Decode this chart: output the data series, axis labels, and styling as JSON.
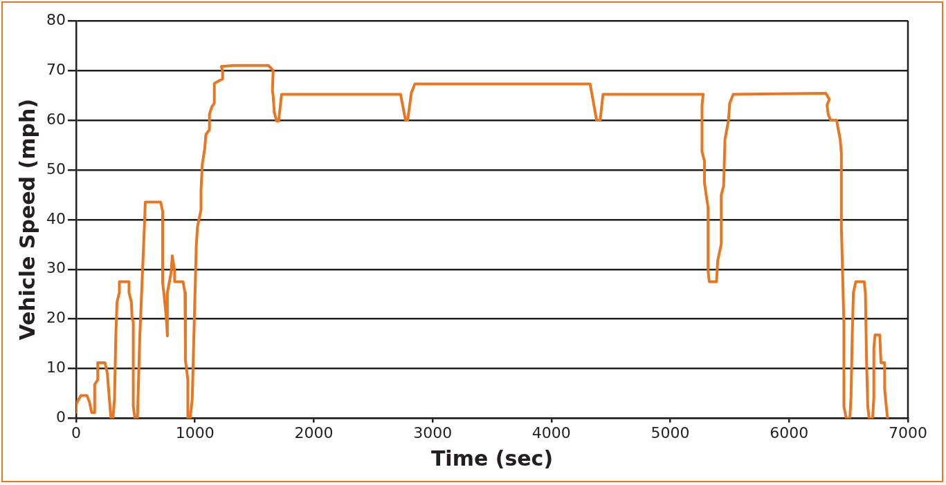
{
  "chart_data": {
    "type": "line",
    "xlabel": "Time (sec)",
    "ylabel": "Vehicle Speed (mph)",
    "xlim": [
      0,
      7000
    ],
    "ylim": [
      0,
      80
    ],
    "xticks": [
      0,
      1000,
      2000,
      3000,
      4000,
      5000,
      6000,
      7000
    ],
    "yticks": [
      0,
      10,
      20,
      30,
      40,
      50,
      60,
      70,
      80
    ],
    "grid": "y",
    "legend": false,
    "marker": "none",
    "line_style": "solid",
    "series": [
      {
        "color": "#e87722",
        "x": [
          0,
          0,
          40,
          91,
          111,
          131,
          152,
          156,
          182,
          182,
          243,
          263,
          273,
          293,
          310,
          323,
          334,
          344,
          364,
          364,
          445,
          445,
          465,
          471,
          481,
          481,
          495,
          516,
          536,
          576,
          582,
          712,
          728,
          728,
          738,
          758,
          768,
          768,
          799,
          809,
          829,
          829,
          900,
          916,
          920,
          940,
          940,
          960,
          977,
          991,
          1011,
          1021,
          1051,
          1051,
          1062,
          1082,
          1092,
          1122,
          1122,
          1142,
          1163,
          1163,
          1193,
          1233,
          1233,
          1223,
          1324,
          1618,
          1658,
          1652,
          1658,
          1668,
          1688,
          1704,
          1719,
          1729,
          2730,
          2772,
          2790,
          2821,
          2851,
          4325,
          4380,
          4410,
          4434,
          5277,
          5267,
          5267,
          5288,
          5288,
          5318,
          5318,
          5328,
          5389,
          5399,
          5429,
          5429,
          5449,
          5460,
          5490,
          5500,
          5530,
          6309,
          6339,
          6319,
          6329,
          6349,
          6400,
          6410,
          6430,
          6440,
          6440,
          6461,
          6461,
          6481,
          6511,
          6521,
          6531,
          6541,
          6561,
          6632,
          6642,
          6652,
          6662,
          6673,
          6703,
          6713,
          6713,
          6723,
          6763,
          6773,
          6804,
          6804,
          6828
        ],
        "values": [
          1.2,
          2.9,
          4.6,
          4.6,
          3.4,
          1.2,
          1.2,
          6.8,
          7.8,
          11.2,
          11.2,
          9,
          5.9,
          0,
          0,
          3.9,
          16.6,
          23.4,
          25.3,
          27.5,
          27.5,
          25.3,
          23.4,
          20,
          19.5,
          2.4,
          0,
          0,
          16.6,
          39.5,
          43.5,
          43.5,
          41.7,
          27.3,
          25.3,
          20.5,
          16.6,
          25.3,
          29.3,
          32.7,
          29.7,
          27.5,
          27.5,
          25.3,
          11.7,
          7.8,
          0,
          0,
          3.9,
          16.6,
          34.6,
          38.5,
          42,
          45.9,
          51.2,
          54.2,
          57.1,
          58.1,
          61.2,
          62.7,
          63.4,
          67.4,
          67.8,
          68.3,
          69.8,
          70.8,
          71,
          71,
          70,
          65.9,
          64.9,
          61.5,
          59.8,
          59.8,
          63,
          65.2,
          65.2,
          60,
          60,
          65.5,
          67.3,
          67.3,
          60,
          60,
          65.2,
          65.2,
          63,
          53.7,
          51.7,
          47.3,
          42.4,
          29.7,
          27.5,
          27.5,
          31.7,
          35.1,
          44.9,
          46.8,
          56.1,
          60,
          63.4,
          65.2,
          65.4,
          64.2,
          63,
          61.2,
          60,
          60,
          58.6,
          56.1,
          53.2,
          38.5,
          19,
          2.4,
          0,
          0,
          4.3,
          16.6,
          25.3,
          27.5,
          27.5,
          25.3,
          11.2,
          2.4,
          0,
          0,
          4.3,
          14.1,
          16.8,
          16.8,
          11.2,
          11.2,
          5.8,
          0
        ]
      }
    ]
  }
}
